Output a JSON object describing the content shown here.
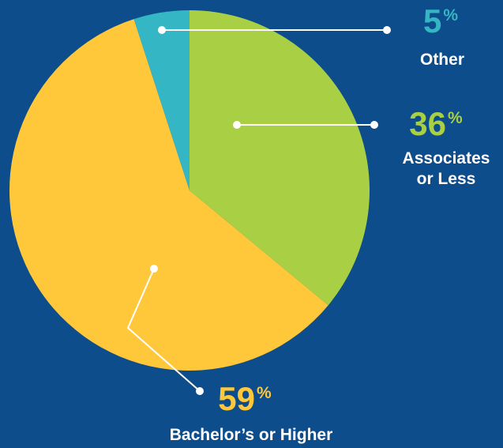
{
  "chart_data": {
    "type": "pie",
    "categories": [
      "Associates\nor Less",
      "Bachelor’s or Higher",
      "Other"
    ],
    "values": [
      36,
      59,
      5
    ],
    "value_labels": [
      "36%",
      "59%",
      "5%"
    ],
    "colors": [
      "#a9d045",
      "#ffc83a",
      "#35b6c5"
    ]
  }
}
